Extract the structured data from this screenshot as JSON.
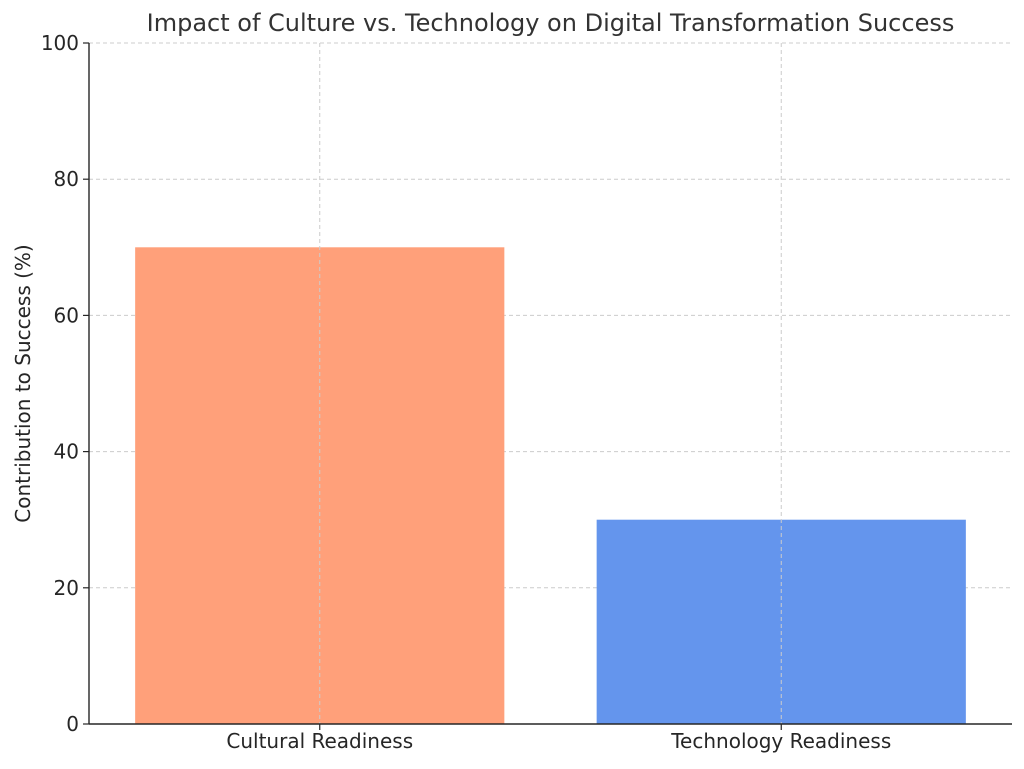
{
  "chart_data": {
    "type": "bar",
    "title": "Impact of Culture vs. Technology on Digital Transformation Success",
    "xlabel": "",
    "ylabel": "Contribution to Success (%)",
    "categories": [
      "Cultural Readiness",
      "Technology Readiness"
    ],
    "values": [
      70,
      30
    ],
    "colors": [
      "#ffa07a",
      "#6495ed"
    ],
    "ylim": [
      0,
      100
    ],
    "yticks": [
      0,
      20,
      40,
      60,
      80,
      100
    ],
    "grid": true,
    "legend": "none"
  }
}
